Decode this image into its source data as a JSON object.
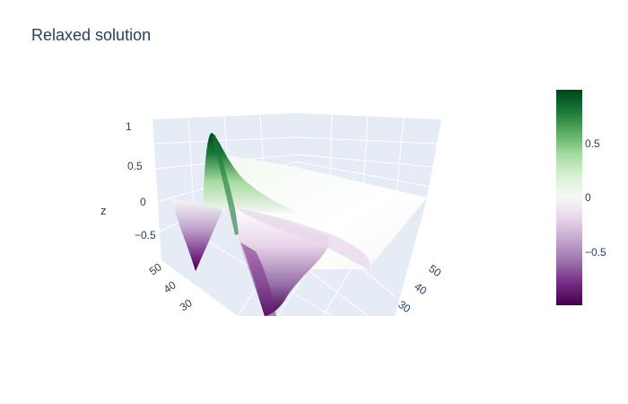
{
  "chart_data": {
    "type": "surface",
    "title": "Relaxed solution",
    "colorscale_name": "PRGn",
    "colorscale": [
      "#40004b",
      "#762a83",
      "#9970ab",
      "#c2a5cf",
      "#e7d4e8",
      "#f7f7f7",
      "#d9f0d3",
      "#a6dba0",
      "#5aae61",
      "#1b7837",
      "#00441b"
    ],
    "zlim": [
      -1,
      1
    ],
    "scene_background": "#e5ecf6",
    "grid_color": "#ffffff",
    "axes": {
      "x": {
        "label": "",
        "ticks": [
          "30",
          "40",
          "50"
        ]
      },
      "y": {
        "label": "",
        "ticks": [
          "30",
          "40",
          "50"
        ]
      },
      "z": {
        "label": "z",
        "ticks": [
          "1",
          "0.5",
          "0",
          "−0.5"
        ]
      }
    },
    "colorbar": {
      "ticks": [
        "0.5",
        "0",
        "−0.5"
      ]
    },
    "surface": {
      "description_peaks": [
        {
          "label": "positive-peak",
          "z": 0.95
        },
        {
          "label": "negative-trough-left",
          "z": -0.75
        },
        {
          "label": "negative-trough-front",
          "z": -0.95
        }
      ]
    }
  }
}
